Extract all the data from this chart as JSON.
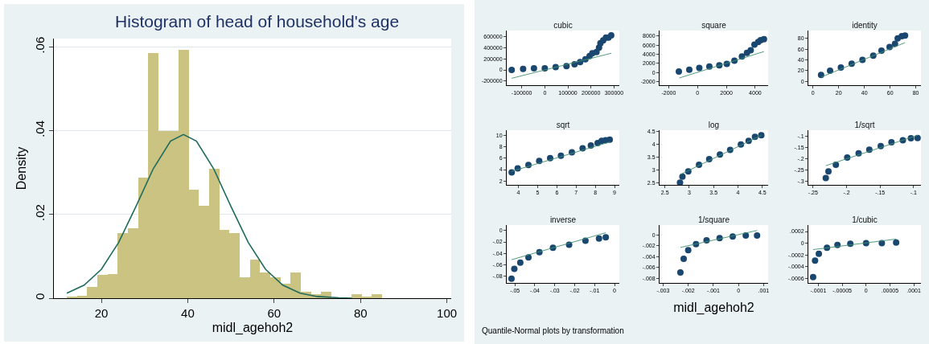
{
  "chart_data": [
    {
      "type": "histogram",
      "title": "Histogram of head of household's age",
      "xlabel": "midl_agehoh2",
      "ylabel": "Density",
      "color": "#cbc381",
      "bins": [
        12,
        14.35,
        16.71,
        19.06,
        21.42,
        23.77,
        26.13,
        28.48,
        30.84,
        33.19,
        35.55,
        37.9,
        40.26,
        42.61,
        44.97,
        47.32,
        49.68,
        52.03,
        54.39,
        56.74,
        59.1,
        61.45,
        63.81,
        66.16,
        68.52,
        70.87,
        73.23,
        75.58,
        77.94,
        80.29,
        82.65,
        85
      ],
      "values": [
        0.0004,
        0.0006,
        0.0027,
        0.0056,
        0.0058,
        0.0155,
        0.0167,
        0.0288,
        0.0585,
        0.04,
        0.04,
        0.0594,
        0.026,
        0.022,
        0.0309,
        0.0164,
        0.0155,
        0.005,
        0.0093,
        0.0062,
        0.005,
        0.0034,
        0.0062,
        0.0016,
        0.0009,
        0.0016,
        0,
        0,
        0.0009,
        0.0004,
        0.0009
      ],
      "series": [
        {
          "type": "line",
          "color": "#1e6b5e",
          "x": [
            12,
            16,
            20,
            24,
            28,
            32,
            36,
            39,
            42,
            46,
            50,
            54,
            58,
            62,
            66,
            70,
            75,
            78
          ],
          "values": [
            0.0012,
            0.0031,
            0.0069,
            0.0133,
            0.0219,
            0.0309,
            0.0375,
            0.0391,
            0.0375,
            0.0309,
            0.0219,
            0.0133,
            0.0069,
            0.0031,
            0.0012,
            0.0004,
            0.0001,
            0
          ]
        }
      ],
      "xlim": [
        9,
        101
      ],
      "ylim": [
        0,
        0.062
      ],
      "xticks": [
        20,
        40,
        60,
        80,
        100
      ],
      "yticks": [
        0,
        {
          "value": 0.02,
          "label": ".02"
        },
        {
          "value": 0.04,
          "label": ".04"
        },
        {
          "value": 0.06,
          "label": ".06"
        }
      ],
      "grid": "y"
    },
    {
      "type": "scatter",
      "title": "cubic",
      "series": [
        {
          "type": "scatter",
          "marker": "circle",
          "color": "#1a476f",
          "x": [
            -143500,
            -94000,
            -47000,
            0,
            47000,
            94000,
            129000,
            153000,
            176000,
            194000,
            206000,
            224000,
            235000,
            241000,
            253000,
            265000,
            276000,
            288000
          ],
          "values": [
            0,
            20000,
            30000,
            30000,
            50000,
            70000,
            100000,
            140000,
            190000,
            250000,
            300000,
            320000,
            400000,
            480000,
            530000,
            580000,
            580000,
            620000
          ]
        },
        {
          "type": "line",
          "color": "#3f8f6f",
          "x": [
            -143500,
            288000
          ],
          "values": [
            -150000,
            300000
          ]
        }
      ],
      "xlim": [
        -165000,
        323000
      ],
      "ylim": [
        -274000,
        708000
      ],
      "xticks": [
        -100000,
        0,
        100000,
        200000,
        300000
      ],
      "yticks": [
        -200000,
        0,
        200000,
        400000,
        600000
      ]
    },
    {
      "type": "scatter",
      "title": "square",
      "series": [
        {
          "type": "scatter",
          "marker": "circle",
          "color": "#1a476f",
          "x": [
            -1300,
            -575,
            120,
            820,
            1510,
            2030,
            2560,
            3080,
            3430,
            3690,
            3950,
            4210,
            4380,
            4610
          ],
          "values": [
            200,
            600,
            1000,
            1300,
            1600,
            1900,
            2600,
            3500,
            4300,
            4900,
            6100,
            6700,
            7100,
            7300
          ]
        },
        {
          "type": "line",
          "color": "#3f8f6f",
          "x": [
            -1270,
            4610
          ],
          "values": [
            -1200,
            4600
          ]
        }
      ],
      "xlim": [
        -2640,
        4900
      ],
      "ylim": [
        -2780,
        9200
      ],
      "xticks": [
        -2000,
        0,
        2000,
        4000
      ],
      "yticks": [
        -2000,
        0,
        2000,
        4000,
        6000,
        8000
      ]
    },
    {
      "type": "scatter",
      "title": "identity",
      "series": [
        {
          "type": "scatter",
          "marker": "circle",
          "color": "#1a476f",
          "x": [
            6.3,
            13.3,
            21.7,
            30.1,
            38.5,
            46.9,
            53.3,
            59.6,
            63.8,
            65.9,
            69.1,
            71.6
          ],
          "values": [
            12,
            20,
            26,
            33,
            40,
            48,
            57,
            64,
            70,
            80,
            84,
            85
          ]
        },
        {
          "type": "line",
          "color": "#3f8f6f",
          "x": [
            6.3,
            71.6
          ],
          "values": [
            8,
            72
          ]
        }
      ],
      "xlim": [
        -3.6,
        84
      ],
      "ylim": [
        -6.9,
        94.4
      ],
      "xticks": [
        0,
        20,
        40,
        60,
        80
      ],
      "yticks": [
        0,
        20,
        40,
        60,
        80
      ]
    },
    {
      "type": "scatter",
      "title": "sqrt",
      "series": [
        {
          "type": "scatter",
          "marker": "circle",
          "color": "#1a476f",
          "x": [
            3.65,
            3.96,
            4.52,
            5.08,
            5.65,
            6.21,
            6.78,
            7.34,
            7.77,
            8.12,
            8.33,
            8.54,
            8.75
          ],
          "values": [
            3.5,
            4.2,
            4.8,
            5.5,
            6,
            6.4,
            7,
            7.7,
            8.2,
            8.6,
            9,
            9.1,
            9.2
          ]
        },
        {
          "type": "line",
          "color": "#3f8f6f",
          "x": [
            3.65,
            8.75
          ],
          "values": [
            3.7,
            8.8
          ]
        }
      ],
      "xlim": [
        3.39,
        9.25
      ],
      "ylim": [
        1.35,
        10.85
      ],
      "xticks": [
        4,
        5,
        6,
        7,
        8,
        9
      ],
      "yticks": [
        2,
        4,
        6,
        8,
        10
      ]
    },
    {
      "type": "scatter",
      "title": "log",
      "series": [
        {
          "type": "scatter",
          "marker": "circle",
          "color": "#1a476f",
          "x": [
            2.81,
            2.86,
            2.98,
            3.2,
            3.41,
            3.63,
            3.84,
            4.06,
            4.22,
            4.35,
            4.48
          ],
          "values": [
            2.51,
            2.74,
            2.95,
            3.21,
            3.43,
            3.61,
            3.79,
            4,
            4.14,
            4.3,
            4.36
          ]
        },
        {
          "type": "line",
          "color": "#3f8f6f",
          "x": [
            2.81,
            4.48
          ],
          "values": [
            2.82,
            4.36
          ]
        }
      ],
      "xlim": [
        2.39,
        4.62
      ],
      "ylim": [
        2.42,
        4.56
      ],
      "xticks": [
        2.5,
        3,
        3.5,
        4,
        4.5
      ],
      "yticks": [
        2.5,
        3,
        3.5,
        4,
        4.5
      ]
    },
    {
      "type": "scatter",
      "title": "1/sqrt",
      "series": [
        {
          "type": "scatter",
          "marker": "circle",
          "color": "#1a476f",
          "x": [
            -0.231,
            -0.227,
            -0.216,
            -0.199,
            -0.182,
            -0.166,
            -0.149,
            -0.133,
            -0.116,
            -0.104,
            -0.094
          ],
          "values": [
            -0.287,
            -0.257,
            -0.228,
            -0.196,
            -0.177,
            -0.161,
            -0.145,
            -0.128,
            -0.119,
            -0.11,
            -0.109
          ]
        },
        {
          "type": "line",
          "color": "#3f8f6f",
          "x": [
            -0.231,
            -0.094
          ],
          "values": [
            -0.232,
            -0.097
          ]
        }
      ],
      "xlim": [
        -0.257,
        -0.089
      ],
      "ylim": [
        -0.317,
        -0.0745
      ],
      "xticks": [
        {
          "value": -0.25,
          "label": "-.25"
        },
        {
          "value": -0.2,
          "label": "-.2"
        },
        {
          "value": -0.15,
          "label": "-.15"
        },
        {
          "value": -0.1,
          "label": "-.1"
        }
      ],
      "yticks": [
        {
          "value": -0.3,
          "label": "-.3"
        },
        {
          "value": -0.25,
          "label": "-.25"
        },
        {
          "value": -0.2,
          "label": "-.2"
        },
        {
          "value": -0.15,
          "label": "-.15"
        },
        {
          "value": -0.1,
          "label": "-.1"
        }
      ]
    },
    {
      "type": "scatter",
      "title": "inverse",
      "annotations": [
        "Quantile-Normal plots by transformation"
      ],
      "series": [
        {
          "type": "scatter",
          "marker": "circle",
          "color": "#1a476f",
          "x": [
            -0.0517,
            -0.0503,
            -0.0473,
            -0.0432,
            -0.0377,
            -0.0309,
            -0.0228,
            -0.0146,
            -0.0078,
            -0.0044
          ],
          "values": [
            -0.084,
            -0.067,
            -0.056,
            -0.047,
            -0.038,
            -0.03,
            -0.025,
            -0.018,
            -0.014,
            -0.012
          ]
        },
        {
          "type": "line",
          "color": "#3f8f6f",
          "x": [
            -0.0517,
            -0.0044
          ],
          "values": [
            -0.051,
            -0.004
          ]
        }
      ],
      "xlim": [
        -0.0541,
        0.0024
      ],
      "ylim": [
        -0.0914,
        0.0094
      ],
      "xticks": [
        {
          "value": -0.05,
          "label": "-.05"
        },
        {
          "value": -0.04,
          "label": "-.04"
        },
        {
          "value": -0.03,
          "label": "-.03"
        },
        {
          "value": -0.02,
          "label": "-.02"
        },
        {
          "value": -0.01,
          "label": "-.01"
        },
        0
      ],
      "yticks": [
        {
          "value": -0.08,
          "label": "-.08"
        },
        {
          "value": -0.06,
          "label": "-.06"
        },
        {
          "value": -0.04,
          "label": "-.04"
        },
        {
          "value": -0.02,
          "label": "-.02"
        },
        0
      ]
    },
    {
      "type": "scatter",
      "title": "1/square",
      "xlabel": "midl_agehoh2",
      "series": [
        {
          "type": "scatter",
          "marker": "circle",
          "color": "#1a476f",
          "x": [
            -0.00231,
            -0.00218,
            -0.002,
            -0.00169,
            -0.00127,
            -0.00075,
            -0.00023,
            0.00029,
            0.00074
          ],
          "values": [
            -0.0069,
            -0.0044,
            -0.0028,
            -0.0017,
            -0.001,
            -0.0006,
            -0.0003,
            -0.0001,
            -0.0001
          ]
        },
        {
          "type": "line",
          "color": "#3f8f6f",
          "x": [
            -0.00231,
            0.00074
          ],
          "values": [
            -0.0023,
            0.0008
          ]
        }
      ],
      "xlim": [
        -0.00314,
        0.00118
      ],
      "ylim": [
        -0.0088,
        0.0018
      ],
      "xticks": [
        {
          "value": -0.003,
          "label": "-.003"
        },
        {
          "value": -0.002,
          "label": "-.002"
        },
        {
          "value": -0.001,
          "label": "-.001"
        },
        0,
        {
          "value": 0.001,
          "label": ".001"
        }
      ],
      "yticks": [
        {
          "value": -0.008,
          "label": "-.008"
        },
        {
          "value": -0.006,
          "label": "-.006"
        },
        {
          "value": -0.004,
          "label": "-.004"
        },
        {
          "value": -0.002,
          "label": "-.002"
        },
        0
      ]
    },
    {
      "type": "scatter",
      "title": "1/cubic",
      "series": [
        {
          "type": "scatter",
          "marker": "circle",
          "color": "#1a476f",
          "x": [
            -0.000111,
            -0.000107,
            -9.9e-05,
            -8.2e-05,
            -6e-05,
            -3.3e-05,
            0,
            3.3e-05,
            6.3e-05
          ],
          "values": [
            -0.00058,
            -0.0003,
            -0.00018,
            -8e-05,
            -3e-05,
            -1e-05,
            0,
            0,
            1e-05
          ]
        },
        {
          "type": "line",
          "color": "#3f8f6f",
          "x": [
            -0.000111,
            6.3e-05
          ],
          "values": [
            -0.00011,
            7e-05
          ]
        }
      ],
      "xlim": [
        -0.000121,
        0.000115
      ],
      "ylim": [
        -0.00068,
        0.00031
      ],
      "xticks": [
        {
          "value": -0.0001,
          "label": "-.0001"
        },
        {
          "value": -5e-05,
          "label": "-.00005"
        },
        0,
        {
          "value": 5e-05,
          "label": ".00005"
        },
        {
          "value": 0.0001,
          "label": ".0001"
        }
      ],
      "yticks": [
        {
          "value": -0.0006,
          "label": "-.0006"
        },
        {
          "value": -0.0004,
          "label": "-.0004"
        },
        {
          "value": -0.0002,
          "label": "-.0002"
        },
        0,
        {
          "value": 0.0002,
          "label": ".0002"
        }
      ]
    }
  ]
}
